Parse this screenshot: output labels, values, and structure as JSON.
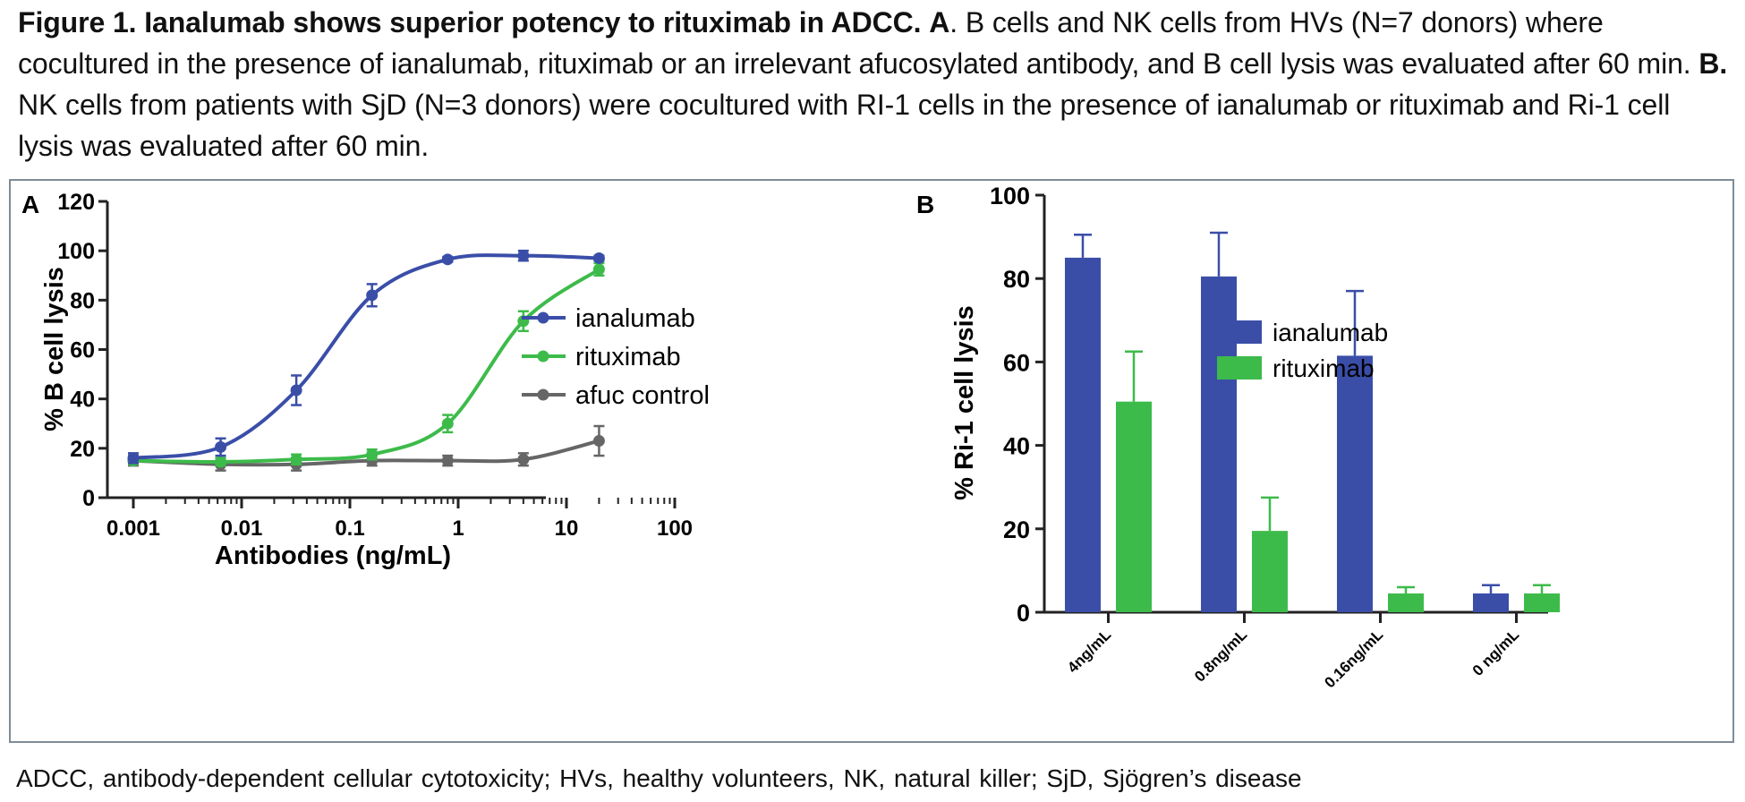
{
  "caption": {
    "bold_title": "Figure 1. Ianalumab shows superior potency to rituximab in ADCC.",
    "part_a_label": "A",
    "part_a_text": ". B cells and NK cells from HVs (N=7 donors) where cocultured in the presence of ianalumab, rituximab or an irrelevant afucosylated antibody, and B cell lysis was evaluated after 60 min.",
    "part_b_label": "B.",
    "part_b_text": "NK cells from patients with SjD (N=3 donors) were cocultured with RI-1 cells in the presence of ianalumab or rituximab and Ri-1 cell lysis was evaluated after 60 min."
  },
  "footnote": "ADCC, antibody-dependent cellular cytotoxicity; HVs, healthy volunteers, NK, natural killer; SjD, Sjögren’s disease",
  "chart_data": [
    {
      "panel_label": "A",
      "type": "line",
      "xlabel": "Antibodies (ng/mL)",
      "ylabel": "% B cell lysis",
      "xscale": "log",
      "xlim": [
        0.001,
        100
      ],
      "ylim": [
        0,
        120
      ],
      "xticks": [
        0.001,
        0.01,
        0.1,
        1,
        10,
        100
      ],
      "xtick_labels": [
        "0.001",
        "0.01",
        "0.1",
        "1",
        "10",
        "100"
      ],
      "yticks": [
        0,
        20,
        40,
        60,
        80,
        100,
        120
      ],
      "ytick_labels": [
        "0",
        "20",
        "40",
        "60",
        "80",
        "100",
        "120"
      ],
      "legend_position": "right",
      "series": [
        {
          "name": "ianalumab",
          "color": "#3a4ea8",
          "x": [
            0.001,
            0.0064,
            0.032,
            0.16,
            0.8,
            4,
            20
          ],
          "y": [
            16,
            20.5,
            43.5,
            82,
            96.5,
            98,
            97
          ],
          "err": [
            2,
            3.5,
            6,
            4.5,
            1,
            2,
            1
          ]
        },
        {
          "name": "rituximab",
          "color": "#3dbb4a",
          "x": [
            0.001,
            0.0064,
            0.032,
            0.16,
            0.8,
            4,
            20
          ],
          "y": [
            15,
            14.5,
            15.5,
            17.5,
            30,
            71.5,
            92.5
          ],
          "err": [
            1.5,
            1.5,
            2,
            2,
            3.5,
            4,
            2.5
          ]
        },
        {
          "name": "afuc control",
          "color": "#666666",
          "x": [
            0.001,
            0.0064,
            0.032,
            0.16,
            0.8,
            4,
            20
          ],
          "y": [
            15,
            13.5,
            13.5,
            15,
            15,
            15.5,
            23
          ],
          "err": [
            2,
            2.5,
            2.5,
            2,
            2,
            2.5,
            6
          ]
        }
      ]
    },
    {
      "panel_label": "B",
      "type": "bar",
      "ylabel": "% Ri-1 cell lysis",
      "ylim": [
        0,
        100
      ],
      "yticks": [
        0,
        20,
        40,
        60,
        80,
        100
      ],
      "ytick_labels": [
        "0",
        "20",
        "40",
        "60",
        "80",
        "100"
      ],
      "categories": [
        "4ng/mL",
        "0.8ng/mL",
        "0.16ng/mL",
        "0 ng/mL"
      ],
      "legend_position": "right",
      "series": [
        {
          "name": "ianalumab",
          "color": "#3a4ea8",
          "values": [
            85,
            80.5,
            61.5,
            4.5
          ],
          "err": [
            5.5,
            10.5,
            15.5,
            2
          ]
        },
        {
          "name": "rituximab",
          "color": "#3dbb4a",
          "values": [
            50.5,
            19.5,
            4.5,
            4.5
          ],
          "err": [
            12,
            8,
            1.5,
            2
          ]
        }
      ]
    }
  ]
}
